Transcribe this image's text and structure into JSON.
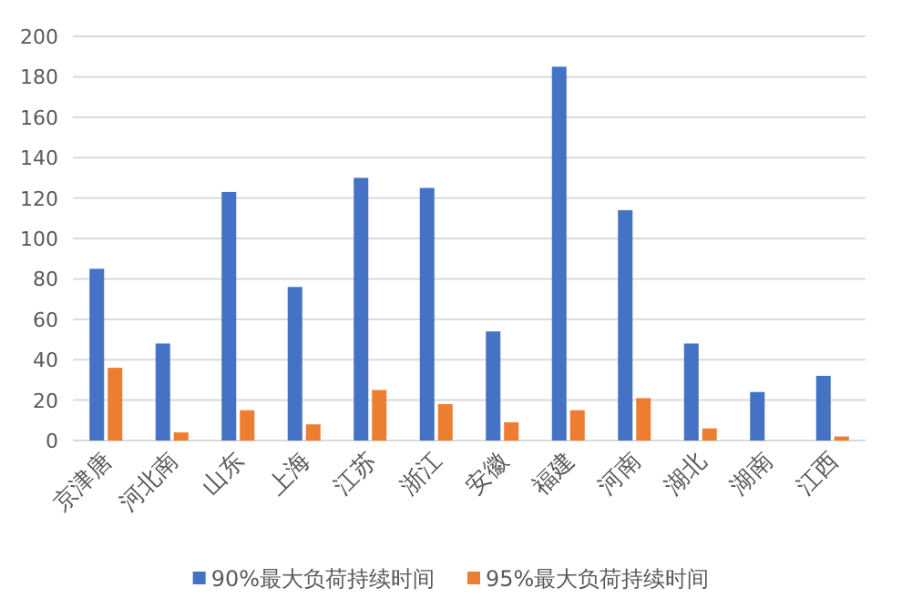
{
  "chart_data": {
    "type": "bar",
    "categories": [
      "京津唐",
      "河北南",
      "山东",
      "上海",
      "江苏",
      "浙江",
      "安徽",
      "福建",
      "河南",
      "湖北",
      "湖南",
      "江西"
    ],
    "series": [
      {
        "name": "90%最大负荷持续时间",
        "color": "#4472c4",
        "values": [
          85,
          48,
          123,
          76,
          130,
          125,
          54,
          185,
          114,
          48,
          24,
          32
        ]
      },
      {
        "name": "95%最大负荷持续时间",
        "color": "#ed7d31",
        "values": [
          36,
          4,
          15,
          8,
          25,
          18,
          9,
          15,
          21,
          6,
          0,
          2
        ]
      }
    ],
    "ylim": [
      0,
      200
    ],
    "yticks": [
      0,
      20,
      40,
      60,
      80,
      100,
      120,
      140,
      160,
      180,
      200
    ],
    "grid": "y",
    "legend": "bottom"
  }
}
